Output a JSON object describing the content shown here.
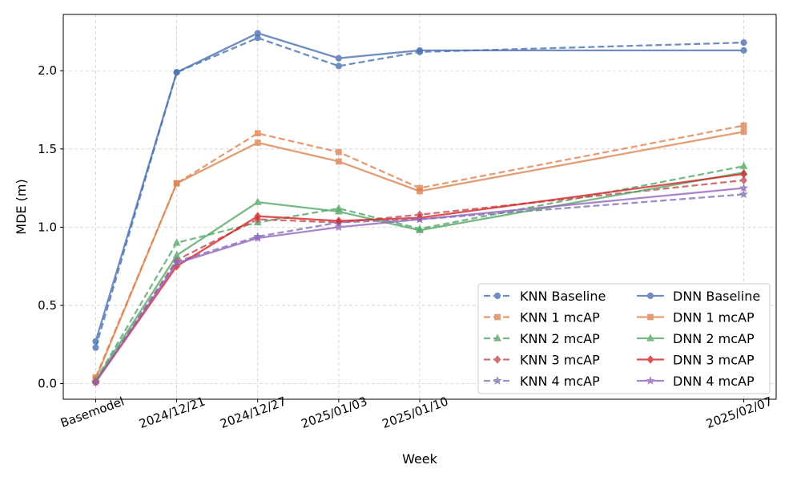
{
  "chart_data": {
    "type": "line",
    "title": "",
    "xlabel": "Week",
    "ylabel": "MDE (m)",
    "categories": [
      "Basemodel",
      "2024/12/21",
      "2024/12/27",
      "2025/01/03",
      "2025/01/10",
      "2025/02/07"
    ],
    "x_days": [
      0,
      6,
      12,
      18,
      24,
      48
    ],
    "ylim": [
      -0.1,
      2.36
    ],
    "yticks": [
      "0.0",
      "0.5",
      "1.0",
      "1.5",
      "2.0"
    ],
    "grid": true,
    "legend_position": "lower-right",
    "series": [
      {
        "name": "KNN Baseline",
        "model": "KNN",
        "style": "dashed",
        "marker": "circle",
        "color": "#4c72b0",
        "values": [
          0.23,
          1.99,
          2.21,
          2.03,
          2.12,
          2.18
        ]
      },
      {
        "name": "KNN 1 mcAP",
        "model": "KNN",
        "style": "dashed",
        "marker": "square",
        "color": "#dd8452",
        "values": [
          0.04,
          1.28,
          1.6,
          1.48,
          1.25,
          1.65
        ]
      },
      {
        "name": "KNN 2 mcAP",
        "model": "KNN",
        "style": "dashed",
        "marker": "triangle",
        "color": "#55a868",
        "values": [
          0.02,
          0.9,
          1.03,
          1.12,
          0.99,
          1.39
        ]
      },
      {
        "name": "KNN 3 mcAP",
        "model": "KNN",
        "style": "dashed",
        "marker": "diamond",
        "color": "#c44e52",
        "values": [
          0.01,
          0.79,
          1.05,
          1.03,
          1.08,
          1.3
        ]
      },
      {
        "name": "KNN 4 mcAP",
        "model": "KNN",
        "style": "dashed",
        "marker": "star",
        "color": "#8172b3",
        "values": [
          0.01,
          0.78,
          0.94,
          1.03,
          1.05,
          1.21
        ]
      },
      {
        "name": "DNN Baseline",
        "model": "DNN",
        "style": "solid",
        "marker": "circle",
        "color": "#4c72b0",
        "values": [
          0.27,
          1.99,
          2.24,
          2.08,
          2.13,
          2.13
        ]
      },
      {
        "name": "DNN 1 mcAP",
        "model": "DNN",
        "style": "solid",
        "marker": "square",
        "color": "#dd8452",
        "values": [
          0.03,
          1.28,
          1.54,
          1.42,
          1.23,
          1.61
        ]
      },
      {
        "name": "DNN 2 mcAP",
        "model": "DNN",
        "style": "solid",
        "marker": "triangle",
        "color": "#55a868",
        "values": [
          0.02,
          0.82,
          1.16,
          1.1,
          0.98,
          1.35
        ]
      },
      {
        "name": "DNN 3 mcAP",
        "model": "DNN",
        "style": "solid",
        "marker": "diamond",
        "color": "#d62728",
        "values": [
          0.01,
          0.75,
          1.07,
          1.04,
          1.06,
          1.34
        ]
      },
      {
        "name": "DNN 4 mcAP",
        "model": "DNN",
        "style": "solid",
        "marker": "star",
        "color": "#9467bd",
        "values": [
          0.01,
          0.77,
          0.93,
          1.0,
          1.05,
          1.25
        ]
      }
    ]
  }
}
